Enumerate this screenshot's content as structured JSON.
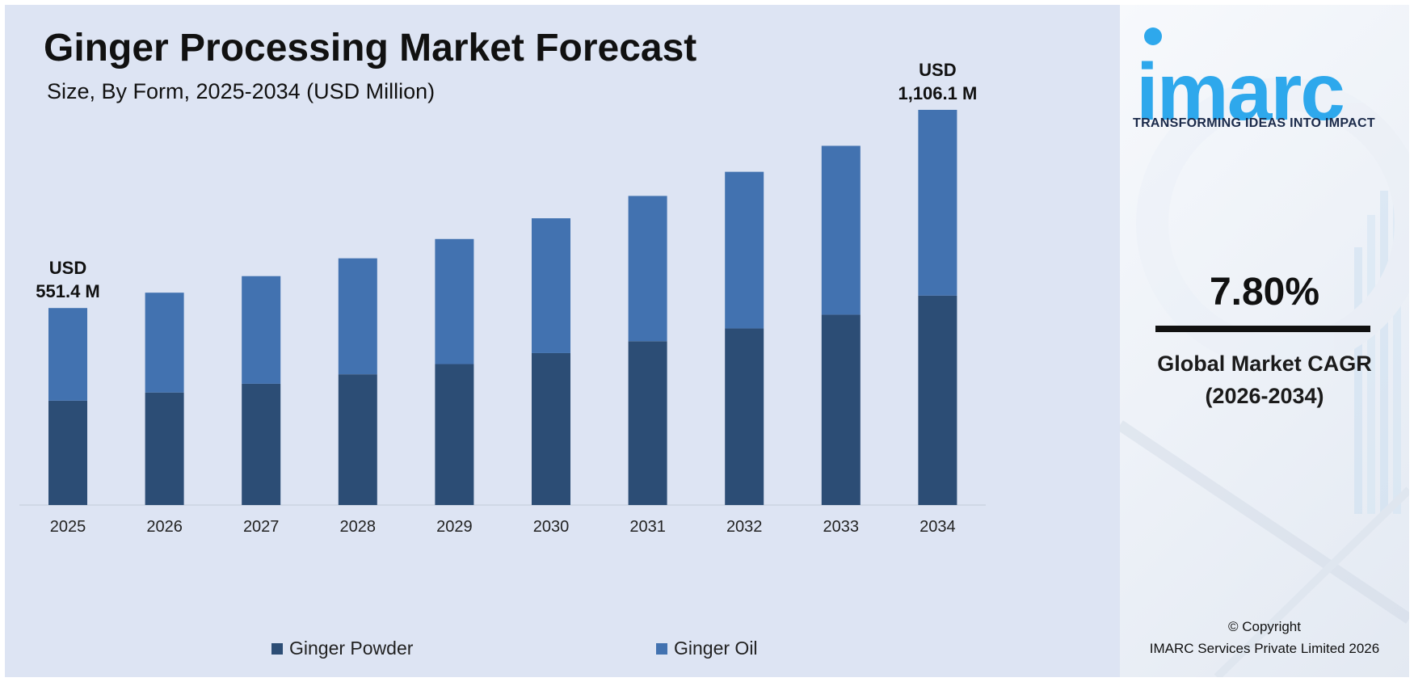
{
  "chart_data": {
    "type": "bar",
    "stacked": true,
    "title": "Ginger Processing Market Forecast",
    "subtitle": "Size, By Form, 2025-2034 (USD Million)",
    "categories": [
      "2025",
      "2026",
      "2027",
      "2028",
      "2029",
      "2030",
      "2031",
      "2032",
      "2033",
      "2034"
    ],
    "series": [
      {
        "name": "Ginger Powder",
        "color": "#2c4d75",
        "values": [
          292.2,
          315.0,
          339.5,
          366.0,
          394.6,
          425.3,
          458.5,
          494.3,
          532.8,
          586.2
        ]
      },
      {
        "name": "Ginger Oil",
        "color": "#4272b0",
        "values": [
          259.2,
          279.4,
          301.2,
          324.6,
          350.0,
          377.3,
          406.7,
          438.4,
          472.6,
          519.9
        ]
      }
    ],
    "annotations": [
      {
        "category": "2025",
        "line1": "USD",
        "line2": "551.4 M"
      },
      {
        "category": "2034",
        "line1": "USD",
        "line2": "1,106.1 M"
      }
    ],
    "ylim": [
      0,
      1400
    ],
    "grid": false,
    "legend": "bottom"
  },
  "brand": {
    "logo_text": "imarc",
    "tagline": "TRANSFORMING IDEAS INTO IMPACT",
    "logo_color": "#2ea8ec"
  },
  "cagr": {
    "value": "7.80%",
    "label_line1": "Global Market CAGR",
    "label_line2": "(2026-2034)"
  },
  "copyright": {
    "line1": "© Copyright",
    "line2": "IMARC Services Private Limited 2026"
  }
}
